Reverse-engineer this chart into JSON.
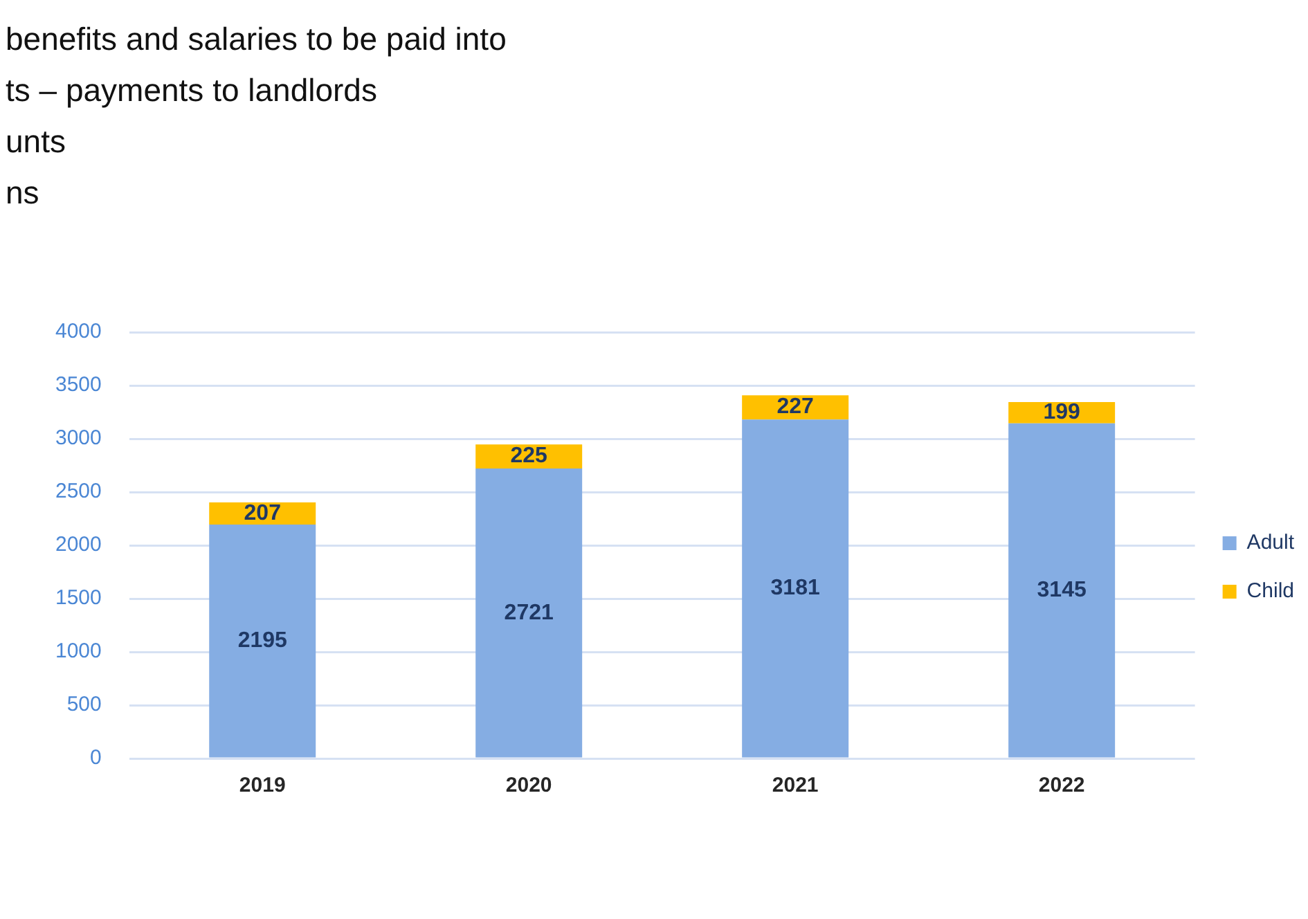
{
  "chart_data": {
    "type": "bar",
    "stacked": true,
    "annotations": [
      "benefits and salaries to be paid into",
      "ts – payments to landlords",
      "unts",
      "ns"
    ],
    "categories": [
      "2019",
      "2020",
      "2021",
      "2022"
    ],
    "series": [
      {
        "name": "Adult",
        "color": "#85ade3",
        "values": [
          2195,
          2721,
          3181,
          3145
        ]
      },
      {
        "name": "Child",
        "color": "#ffc000",
        "values": [
          207,
          225,
          227,
          199
        ]
      }
    ],
    "ylim": [
      0,
      4000
    ],
    "yticks": [
      0,
      500,
      1000,
      1500,
      2000,
      2500,
      3000,
      3500,
      4000
    ],
    "grid": "y",
    "legend": "right",
    "data_labels": true
  }
}
